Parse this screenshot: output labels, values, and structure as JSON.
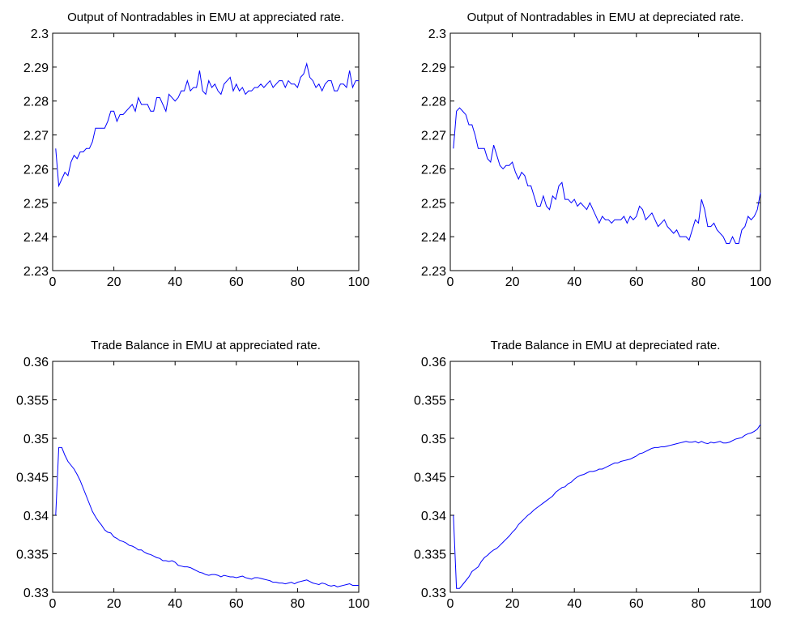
{
  "chart_data": [
    {
      "type": "line",
      "title": "Output of Nontradables in EMU at appreciated rate.",
      "color": "#0000ff",
      "x": [
        1,
        2,
        3,
        4,
        5,
        6,
        7,
        8,
        9,
        10,
        11,
        12,
        13,
        14,
        15,
        16,
        17,
        18,
        19,
        20,
        21,
        22,
        23,
        24,
        25,
        26,
        27,
        28,
        29,
        30,
        31,
        32,
        33,
        34,
        35,
        36,
        37,
        38,
        39,
        40,
        41,
        42,
        43,
        44,
        45,
        46,
        47,
        48,
        49,
        50,
        51,
        52,
        53,
        54,
        55,
        56,
        57,
        58,
        59,
        60,
        61,
        62,
        63,
        64,
        65,
        66,
        67,
        68,
        69,
        70,
        71,
        72,
        73,
        74,
        75,
        76,
        77,
        78,
        79,
        80,
        81,
        82,
        83,
        84,
        85,
        86,
        87,
        88,
        89,
        90,
        91,
        92,
        93,
        94,
        95,
        96,
        97,
        98,
        99,
        100
      ],
      "values": [
        2.266,
        2.255,
        2.257,
        2.259,
        2.258,
        2.262,
        2.264,
        2.263,
        2.265,
        2.265,
        2.266,
        2.266,
        2.268,
        2.272,
        2.272,
        2.272,
        2.272,
        2.274,
        2.277,
        2.277,
        2.274,
        2.276,
        2.276,
        2.277,
        2.278,
        2.279,
        2.277,
        2.281,
        2.279,
        2.279,
        2.279,
        2.277,
        2.277,
        2.281,
        2.281,
        2.279,
        2.277,
        2.282,
        2.281,
        2.28,
        2.281,
        2.283,
        2.283,
        2.286,
        2.283,
        2.284,
        2.284,
        2.289,
        2.283,
        2.282,
        2.286,
        2.284,
        2.285,
        2.283,
        2.282,
        2.285,
        2.286,
        2.287,
        2.283,
        2.285,
        2.283,
        2.284,
        2.282,
        2.283,
        2.283,
        2.284,
        2.284,
        2.285,
        2.284,
        2.285,
        2.286,
        2.284,
        2.285,
        2.286,
        2.286,
        2.284,
        2.286,
        2.285,
        2.285,
        2.284,
        2.287,
        2.288,
        2.291,
        2.287,
        2.286,
        2.284,
        2.285,
        2.283,
        2.285,
        2.286,
        2.286,
        2.283,
        2.283,
        2.285,
        2.285,
        2.284,
        2.289,
        2.284,
        2.286,
        2.286
      ],
      "xlim": [
        0,
        100
      ],
      "xticks": [
        0,
        20,
        40,
        60,
        80,
        100
      ],
      "ylim": [
        2.23,
        2.3
      ],
      "yticks": [
        2.23,
        2.24,
        2.25,
        2.26,
        2.27,
        2.28,
        2.29,
        2.3
      ],
      "grid": false
    },
    {
      "type": "line",
      "title": "Output of Nontradables in EMU at depreciated rate.",
      "color": "#0000ff",
      "x": [
        1,
        2,
        3,
        4,
        5,
        6,
        7,
        8,
        9,
        10,
        11,
        12,
        13,
        14,
        15,
        16,
        17,
        18,
        19,
        20,
        21,
        22,
        23,
        24,
        25,
        26,
        27,
        28,
        29,
        30,
        31,
        32,
        33,
        34,
        35,
        36,
        37,
        38,
        39,
        40,
        41,
        42,
        43,
        44,
        45,
        46,
        47,
        48,
        49,
        50,
        51,
        52,
        53,
        54,
        55,
        56,
        57,
        58,
        59,
        60,
        61,
        62,
        63,
        64,
        65,
        66,
        67,
        68,
        69,
        70,
        71,
        72,
        73,
        74,
        75,
        76,
        77,
        78,
        79,
        80,
        81,
        82,
        83,
        84,
        85,
        86,
        87,
        88,
        89,
        90,
        91,
        92,
        93,
        94,
        95,
        96,
        97,
        98,
        99,
        100
      ],
      "values": [
        2.266,
        2.277,
        2.278,
        2.277,
        2.276,
        2.273,
        2.273,
        2.27,
        2.266,
        2.266,
        2.266,
        2.263,
        2.262,
        2.267,
        2.264,
        2.261,
        2.26,
        2.261,
        2.261,
        2.262,
        2.259,
        2.257,
        2.259,
        2.258,
        2.255,
        2.255,
        2.252,
        2.249,
        2.249,
        2.252,
        2.249,
        2.248,
        2.252,
        2.251,
        2.255,
        2.256,
        2.251,
        2.251,
        2.25,
        2.251,
        2.249,
        2.25,
        2.249,
        2.248,
        2.25,
        2.248,
        2.246,
        2.244,
        2.246,
        2.245,
        2.245,
        2.244,
        2.245,
        2.245,
        2.245,
        2.246,
        2.244,
        2.246,
        2.245,
        2.246,
        2.249,
        2.248,
        2.245,
        2.246,
        2.247,
        2.245,
        2.243,
        2.244,
        2.245,
        2.243,
        2.242,
        2.241,
        2.242,
        2.24,
        2.24,
        2.24,
        2.239,
        2.242,
        2.245,
        2.244,
        2.251,
        2.248,
        2.243,
        2.243,
        2.244,
        2.242,
        2.241,
        2.24,
        2.238,
        2.238,
        2.24,
        2.238,
        2.238,
        2.242,
        2.243,
        2.246,
        2.245,
        2.246,
        2.248,
        2.253
      ],
      "xlim": [
        0,
        100
      ],
      "xticks": [
        0,
        20,
        40,
        60,
        80,
        100
      ],
      "ylim": [
        2.23,
        2.3
      ],
      "yticks": [
        2.23,
        2.24,
        2.25,
        2.26,
        2.27,
        2.28,
        2.29,
        2.3
      ],
      "grid": false
    },
    {
      "type": "line",
      "title": "Trade Balance in EMU at appreciated rate.",
      "color": "#0000ff",
      "x": [
        1,
        2,
        3,
        4,
        5,
        6,
        7,
        8,
        9,
        10,
        11,
        12,
        13,
        14,
        15,
        16,
        17,
        18,
        19,
        20,
        21,
        22,
        23,
        24,
        25,
        26,
        27,
        28,
        29,
        30,
        31,
        32,
        33,
        34,
        35,
        36,
        37,
        38,
        39,
        40,
        41,
        42,
        43,
        44,
        45,
        46,
        47,
        48,
        49,
        50,
        51,
        52,
        53,
        54,
        55,
        56,
        57,
        58,
        59,
        60,
        61,
        62,
        63,
        64,
        65,
        66,
        67,
        68,
        69,
        70,
        71,
        72,
        73,
        74,
        75,
        76,
        77,
        78,
        79,
        80,
        81,
        82,
        83,
        84,
        85,
        86,
        87,
        88,
        89,
        90,
        91,
        92,
        93,
        94,
        95,
        96,
        97,
        98,
        99,
        100
      ],
      "values": [
        0.34,
        0.3488,
        0.3488,
        0.3478,
        0.347,
        0.3465,
        0.346,
        0.3453,
        0.3445,
        0.3435,
        0.3425,
        0.3415,
        0.3405,
        0.3398,
        0.3392,
        0.3387,
        0.3381,
        0.3378,
        0.3377,
        0.3372,
        0.337,
        0.3367,
        0.3366,
        0.3364,
        0.3361,
        0.336,
        0.3358,
        0.3355,
        0.3355,
        0.3352,
        0.335,
        0.3349,
        0.3347,
        0.3345,
        0.3344,
        0.3341,
        0.3341,
        0.334,
        0.3341,
        0.3339,
        0.3335,
        0.3334,
        0.3333,
        0.3333,
        0.3332,
        0.333,
        0.3328,
        0.3326,
        0.3325,
        0.3323,
        0.3322,
        0.3323,
        0.3323,
        0.3322,
        0.332,
        0.3322,
        0.3321,
        0.332,
        0.332,
        0.3319,
        0.332,
        0.3321,
        0.3319,
        0.3318,
        0.3317,
        0.3319,
        0.3319,
        0.3318,
        0.3317,
        0.3316,
        0.3315,
        0.3313,
        0.3313,
        0.3312,
        0.3312,
        0.3311,
        0.3312,
        0.3313,
        0.3311,
        0.3313,
        0.3314,
        0.3315,
        0.3316,
        0.3314,
        0.3312,
        0.3311,
        0.331,
        0.3312,
        0.3311,
        0.3309,
        0.3308,
        0.3309,
        0.3307,
        0.3308,
        0.3309,
        0.331,
        0.3311,
        0.3309,
        0.3309,
        0.3309
      ],
      "xlim": [
        0,
        100
      ],
      "xticks": [
        0,
        20,
        40,
        60,
        80,
        100
      ],
      "ylim": [
        0.33,
        0.36
      ],
      "yticks": [
        0.33,
        0.335,
        0.34,
        0.345,
        0.35,
        0.355,
        0.36
      ],
      "grid": false
    },
    {
      "type": "line",
      "title": "Trade Balance in EMU at depreciated rate.",
      "color": "#0000ff",
      "x": [
        1,
        2,
        3,
        4,
        5,
        6,
        7,
        8,
        9,
        10,
        11,
        12,
        13,
        14,
        15,
        16,
        17,
        18,
        19,
        20,
        21,
        22,
        23,
        24,
        25,
        26,
        27,
        28,
        29,
        30,
        31,
        32,
        33,
        34,
        35,
        36,
        37,
        38,
        39,
        40,
        41,
        42,
        43,
        44,
        45,
        46,
        47,
        48,
        49,
        50,
        51,
        52,
        53,
        54,
        55,
        56,
        57,
        58,
        59,
        60,
        61,
        62,
        63,
        64,
        65,
        66,
        67,
        68,
        69,
        70,
        71,
        72,
        73,
        74,
        75,
        76,
        77,
        78,
        79,
        80,
        81,
        82,
        83,
        84,
        85,
        86,
        87,
        88,
        89,
        90,
        91,
        92,
        93,
        94,
        95,
        96,
        97,
        98,
        99,
        100
      ],
      "values": [
        0.34,
        0.3305,
        0.3305,
        0.331,
        0.3315,
        0.332,
        0.3327,
        0.333,
        0.3333,
        0.334,
        0.3345,
        0.3348,
        0.3352,
        0.3355,
        0.3357,
        0.3361,
        0.3365,
        0.3369,
        0.3373,
        0.3378,
        0.3382,
        0.3388,
        0.3392,
        0.3396,
        0.34,
        0.3403,
        0.3407,
        0.341,
        0.3413,
        0.3416,
        0.3419,
        0.3422,
        0.3425,
        0.343,
        0.3433,
        0.3436,
        0.3437,
        0.3441,
        0.3443,
        0.3447,
        0.345,
        0.3452,
        0.3453,
        0.3455,
        0.3457,
        0.3457,
        0.3458,
        0.346,
        0.346,
        0.3462,
        0.3464,
        0.3466,
        0.3468,
        0.3468,
        0.347,
        0.3471,
        0.3472,
        0.3473,
        0.3475,
        0.3477,
        0.348,
        0.3481,
        0.3483,
        0.3485,
        0.3487,
        0.3488,
        0.3488,
        0.3489,
        0.3489,
        0.349,
        0.3491,
        0.3492,
        0.3493,
        0.3494,
        0.3495,
        0.3496,
        0.3495,
        0.3495,
        0.3496,
        0.3494,
        0.3496,
        0.3494,
        0.3493,
        0.3495,
        0.3494,
        0.3495,
        0.3496,
        0.3494,
        0.3494,
        0.3495,
        0.3497,
        0.3499,
        0.35,
        0.3501,
        0.3504,
        0.3506,
        0.3507,
        0.3509,
        0.3512,
        0.3518
      ],
      "xlim": [
        0,
        100
      ],
      "xticks": [
        0,
        20,
        40,
        60,
        80,
        100
      ],
      "ylim": [
        0.33,
        0.36
      ],
      "yticks": [
        0.33,
        0.335,
        0.34,
        0.345,
        0.35,
        0.355,
        0.36
      ],
      "grid": false
    }
  ]
}
